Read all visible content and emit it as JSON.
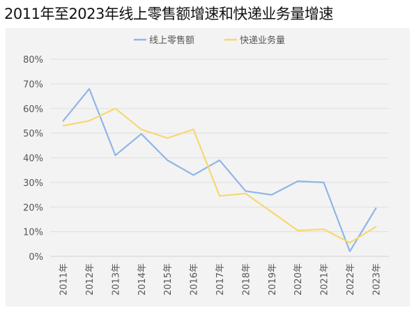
{
  "chart_data": {
    "type": "line",
    "title": "2011年至2023年线上零售额增速和快递业务量增速",
    "categories": [
      "2011年",
      "2012年",
      "2013年",
      "2014年",
      "2015年",
      "2016年",
      "2017年",
      "2018年",
      "2019年",
      "2020年",
      "2021年",
      "2022年",
      "2023年"
    ],
    "y_ticks": [
      "0%",
      "10%",
      "20%",
      "30%",
      "40%",
      "50%",
      "60%",
      "70%",
      "80%"
    ],
    "ylim": [
      0,
      80
    ],
    "grid": true,
    "legend_position": "top-center",
    "series": [
      {
        "name": "线上零售额",
        "color": "#8fb6e8",
        "values": [
          55,
          68,
          41,
          49.7,
          39,
          33,
          39,
          26.5,
          25,
          30.5,
          30,
          2,
          19.5
        ]
      },
      {
        "name": "快递业务量",
        "color": "#f7d870",
        "values": [
          53,
          55,
          60,
          51.5,
          48,
          51.5,
          24.5,
          25.5,
          18,
          10.5,
          11,
          5.5,
          12
        ]
      }
    ]
  }
}
